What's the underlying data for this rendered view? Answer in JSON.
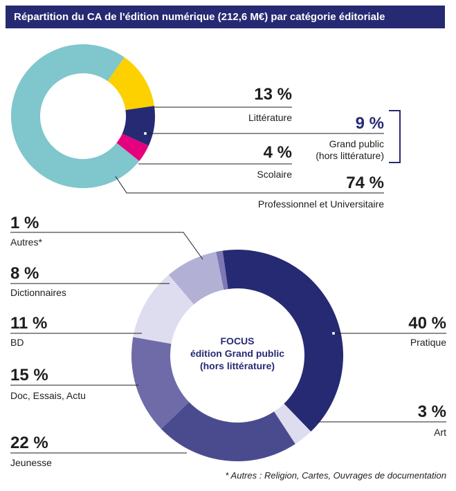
{
  "title": "Répartition du CA de l'édition numérique (212,6 M€) par catégorie éditoriale",
  "footnote": "* Autres : Religion, Cartes, Ouvrages de documentation",
  "colors": {
    "title_bg": "#262a73",
    "accent": "#262a73",
    "litterature": "#fdd000",
    "grand_public": "#262a73",
    "scolaire": "#e5007e",
    "professionnel": "#7fc6cd",
    "pratique": "#262a73",
    "art": "#dedcef",
    "jeunesse": "#4a4b8f",
    "doc": "#6e6ba8",
    "bd": "#dedcef",
    "dictionnaires": "#b3b0d6",
    "autres": "#7b78b3"
  },
  "top_chart": {
    "labels": {
      "litterature": {
        "pct": "13 %",
        "name": "Littérature"
      },
      "grand_public": {
        "pct": "9 %",
        "name1": "Grand public",
        "name2": "(hors littérature)"
      },
      "scolaire": {
        "pct": "4 %",
        "name": "Scolaire"
      },
      "professionnel": {
        "pct": "74 %",
        "name": "Professionnel et Universitaire"
      }
    }
  },
  "bottom_chart": {
    "center": {
      "line1": "FOCUS",
      "line2": "édition Grand public",
      "line3": "(hors littérature)"
    },
    "labels": {
      "autres": {
        "pct": "1 %",
        "name": "Autres*"
      },
      "dictionnaires": {
        "pct": "8 %",
        "name": "Dictionnaires"
      },
      "bd": {
        "pct": "11 %",
        "name": "BD"
      },
      "doc": {
        "pct": "15 %",
        "name": "Doc, Essais, Actu"
      },
      "jeunesse": {
        "pct": "22 %",
        "name": "Jeunesse"
      },
      "pratique": {
        "pct": "40 %",
        "name": "Pratique"
      },
      "art": {
        "pct": "3 %",
        "name": "Art"
      }
    }
  },
  "chart_data": [
    {
      "type": "pie",
      "title": "Répartition du CA de l'édition numérique (212,6 M€) par catégorie éditoriale",
      "categories": [
        "Littérature",
        "Grand public (hors littérature)",
        "Scolaire",
        "Professionnel et Universitaire"
      ],
      "values": [
        13,
        9,
        4,
        74
      ]
    },
    {
      "type": "pie",
      "title": "FOCUS édition Grand public (hors littérature)",
      "categories": [
        "Pratique",
        "Art",
        "Jeunesse",
        "Doc, Essais, Actu",
        "BD",
        "Dictionnaires",
        "Autres*"
      ],
      "values": [
        40,
        3,
        22,
        15,
        11,
        8,
        1
      ]
    }
  ]
}
